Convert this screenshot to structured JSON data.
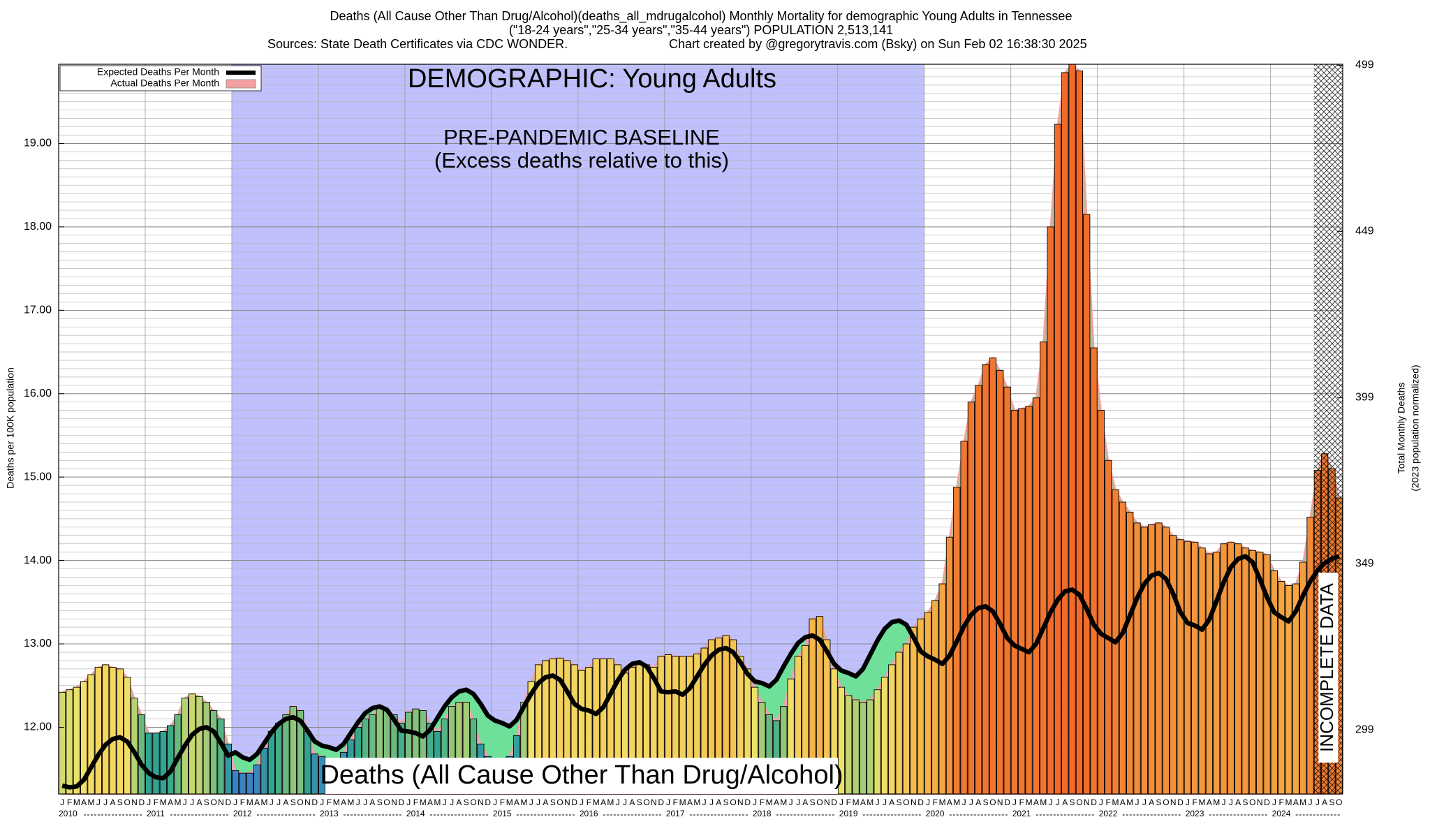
{
  "chart_data": {
    "type": "bar",
    "title": "Deaths (All Cause Other Than Drug/Alcohol)(deaths_all_mdrugalcohol) Monthly Mortality for demographic Young Adults in Tennessee",
    "subtitle": "(\"18-24 years\",\"25-34 years\",\"35-44 years\") POPULATION 2,513,141",
    "sources": "Sources: State Death Certificates via CDC WONDER.",
    "credit": "Chart created by @gregorytravis.com (Bsky) on Sun Feb 02 16:38:30 2025",
    "y_label": "Deaths per 100K population",
    "y2_label": "Total Monthly Deaths",
    "y2_label_sub": "(2023 population normalized)",
    "annotations": {
      "demographic": "DEMOGRAPHIC: Young Adults",
      "baseline": "PRE-PANDEMIC BASELINE",
      "baseline_note": "(Excess deaths relative to this)",
      "measure": "Deaths (All Cause Other Than Drug/Alcohol)",
      "incomplete": "INCOMPLETE DATA"
    },
    "baseline": {
      "from": "2012-01",
      "to": "2019-12"
    },
    "incomplete_from": "2024-07",
    "month_labels": [
      "J",
      "F",
      "M",
      "A",
      "M",
      "J",
      "J",
      "A",
      "S",
      "O",
      "N",
      "D"
    ],
    "years": [
      "2010",
      "2011",
      "2012",
      "2013",
      "2014",
      "2015",
      "2016",
      "2017",
      "2018",
      "2019",
      "2020",
      "2021",
      "2022",
      "2023",
      "2024"
    ],
    "x": [
      "2010-01",
      "2010-02",
      "2010-03",
      "2010-04",
      "2010-05",
      "2010-06",
      "2010-07",
      "2010-08",
      "2010-09",
      "2010-10",
      "2010-11",
      "2010-12",
      "2011-01",
      "2011-02",
      "2011-03",
      "2011-04",
      "2011-05",
      "2011-06",
      "2011-07",
      "2011-08",
      "2011-09",
      "2011-10",
      "2011-11",
      "2011-12",
      "2012-01",
      "2012-02",
      "2012-03",
      "2012-04",
      "2012-05",
      "2012-06",
      "2012-07",
      "2012-08",
      "2012-09",
      "2012-10",
      "2012-11",
      "2012-12",
      "2013-01",
      "2013-02",
      "2013-03",
      "2013-04",
      "2013-05",
      "2013-06",
      "2013-07",
      "2013-08",
      "2013-09",
      "2013-10",
      "2013-11",
      "2013-12",
      "2014-01",
      "2014-02",
      "2014-03",
      "2014-04",
      "2014-05",
      "2014-06",
      "2014-07",
      "2014-08",
      "2014-09",
      "2014-10",
      "2014-11",
      "2014-12",
      "2015-01",
      "2015-02",
      "2015-03",
      "2015-04",
      "2015-05",
      "2015-06",
      "2015-07",
      "2015-08",
      "2015-09",
      "2015-10",
      "2015-11",
      "2015-12",
      "2016-01",
      "2016-02",
      "2016-03",
      "2016-04",
      "2016-05",
      "2016-06",
      "2016-07",
      "2016-08",
      "2016-09",
      "2016-10",
      "2016-11",
      "2016-12",
      "2017-01",
      "2017-02",
      "2017-03",
      "2017-04",
      "2017-05",
      "2017-06",
      "2017-07",
      "2017-08",
      "2017-09",
      "2017-10",
      "2017-11",
      "2017-12",
      "2018-01",
      "2018-02",
      "2018-03",
      "2018-04",
      "2018-05",
      "2018-06",
      "2018-07",
      "2018-08",
      "2018-09",
      "2018-10",
      "2018-11",
      "2018-12",
      "2019-01",
      "2019-02",
      "2019-03",
      "2019-04",
      "2019-05",
      "2019-06",
      "2019-07",
      "2019-08",
      "2019-09",
      "2019-10",
      "2019-11",
      "2019-12",
      "2020-01",
      "2020-02",
      "2020-03",
      "2020-04",
      "2020-05",
      "2020-06",
      "2020-07",
      "2020-08",
      "2020-09",
      "2020-10",
      "2020-11",
      "2020-12",
      "2021-01",
      "2021-02",
      "2021-03",
      "2021-04",
      "2021-05",
      "2021-06",
      "2021-07",
      "2021-08",
      "2021-09",
      "2021-10",
      "2021-11",
      "2021-12",
      "2022-01",
      "2022-02",
      "2022-03",
      "2022-04",
      "2022-05",
      "2022-06",
      "2022-07",
      "2022-08",
      "2022-09",
      "2022-10",
      "2022-11",
      "2022-12",
      "2023-01",
      "2023-02",
      "2023-03",
      "2023-04",
      "2023-05",
      "2023-06",
      "2023-07",
      "2023-08",
      "2023-09",
      "2023-10",
      "2023-11",
      "2023-12",
      "2024-01",
      "2024-02",
      "2024-03",
      "2024-04",
      "2024-05",
      "2024-06",
      "2024-07",
      "2024-08",
      "2024-09",
      "2024-10"
    ],
    "series": [
      {
        "name": "Expected Deaths Per Month",
        "color": "#000000",
        "kind": "line",
        "values": [
          11.3,
          11.28,
          11.29,
          11.37,
          11.52,
          11.67,
          11.79,
          11.86,
          11.88,
          11.83,
          11.7,
          11.55,
          11.45,
          11.4,
          11.39,
          11.47,
          11.63,
          11.78,
          11.91,
          11.98,
          12.0,
          11.95,
          11.81,
          11.66,
          11.7,
          11.64,
          11.61,
          11.68,
          11.81,
          11.94,
          12.04,
          12.1,
          12.12,
          12.08,
          11.96,
          11.83,
          11.78,
          11.76,
          11.73,
          11.8,
          11.93,
          12.06,
          12.17,
          12.23,
          12.25,
          12.21,
          12.09,
          11.96,
          11.95,
          11.93,
          11.89,
          11.97,
          12.11,
          12.25,
          12.36,
          12.43,
          12.45,
          12.4,
          12.28,
          12.14,
          12.08,
          12.05,
          12.01,
          12.09,
          12.25,
          12.4,
          12.53,
          12.6,
          12.62,
          12.57,
          12.43,
          12.28,
          12.22,
          12.2,
          12.16,
          12.24,
          12.4,
          12.56,
          12.69,
          12.76,
          12.78,
          12.73,
          12.59,
          12.43,
          12.42,
          12.43,
          12.39,
          12.47,
          12.61,
          12.75,
          12.86,
          12.93,
          12.95,
          12.9,
          12.78,
          12.64,
          12.55,
          12.53,
          12.49,
          12.57,
          12.73,
          12.88,
          13.01,
          13.08,
          13.1,
          13.05,
          12.91,
          12.76,
          12.68,
          12.65,
          12.61,
          12.7,
          12.87,
          13.04,
          13.18,
          13.26,
          13.28,
          13.23,
          13.08,
          12.91,
          12.85,
          12.81,
          12.76,
          12.86,
          13.03,
          13.21,
          13.35,
          13.43,
          13.45,
          13.39,
          13.24,
          13.07,
          12.98,
          12.94,
          12.9,
          13.0,
          13.19,
          13.38,
          13.53,
          13.63,
          13.65,
          13.59,
          13.42,
          13.23,
          13.12,
          13.07,
          13.02,
          13.13,
          13.34,
          13.55,
          13.72,
          13.82,
          13.85,
          13.78,
          13.6,
          13.38,
          13.25,
          13.22,
          13.17,
          13.29,
          13.51,
          13.74,
          13.92,
          14.02,
          14.05,
          13.98,
          13.78,
          13.56,
          13.38,
          13.32,
          13.27,
          13.39,
          13.58,
          13.75,
          13.88,
          13.97,
          14.02,
          14.05
        ]
      },
      {
        "name": "Actual Deaths Per Month",
        "color": "#f4a0a0",
        "kind": "bar",
        "values": [
          12.42,
          12.45,
          12.48,
          12.55,
          12.63,
          12.72,
          12.75,
          12.72,
          12.7,
          12.6,
          12.35,
          12.15,
          11.93,
          11.93,
          11.95,
          12.02,
          12.15,
          12.35,
          12.4,
          12.37,
          12.3,
          12.2,
          12.1,
          11.8,
          11.48,
          11.45,
          11.45,
          11.55,
          11.75,
          11.95,
          12.05,
          12.15,
          12.25,
          12.2,
          11.95,
          11.68,
          11.65,
          11.6,
          11.58,
          11.7,
          11.85,
          12.0,
          12.1,
          12.15,
          12.25,
          12.2,
          12.15,
          12.05,
          12.18,
          12.22,
          12.2,
          12.05,
          11.95,
          12.1,
          12.25,
          12.3,
          12.3,
          12.1,
          11.8,
          11.65,
          11.55,
          11.55,
          11.65,
          11.9,
          12.3,
          12.55,
          12.75,
          12.8,
          12.82,
          12.83,
          12.8,
          12.75,
          12.68,
          12.72,
          12.82,
          12.82,
          12.82,
          12.75,
          12.65,
          12.72,
          12.75,
          12.75,
          12.72,
          12.85,
          12.87,
          12.85,
          12.85,
          12.85,
          12.88,
          12.95,
          13.05,
          13.07,
          13.1,
          13.05,
          12.85,
          12.7,
          12.48,
          12.3,
          12.15,
          12.08,
          12.25,
          12.58,
          12.85,
          12.98,
          13.3,
          13.33,
          13.05,
          12.7,
          12.48,
          12.38,
          12.33,
          12.3,
          12.33,
          12.45,
          12.6,
          12.75,
          12.9,
          13.0,
          13.2,
          13.3,
          13.38,
          13.52,
          13.72,
          14.28,
          14.88,
          15.43,
          15.9,
          16.1,
          16.35,
          16.43,
          16.28,
          16.08,
          15.8,
          15.82,
          15.85,
          15.95,
          16.62,
          18.0,
          19.23,
          19.85,
          19.95,
          19.87,
          18.15,
          16.55,
          15.8,
          15.2,
          14.85,
          14.7,
          14.58,
          14.45,
          14.4,
          14.43,
          14.45,
          14.4,
          14.3,
          14.25,
          14.23,
          14.22,
          14.15,
          14.08,
          14.1,
          14.2,
          14.22,
          14.2,
          14.15,
          14.12,
          14.1,
          14.07,
          13.88,
          13.75,
          13.7,
          13.72,
          13.98,
          14.52,
          15.08,
          15.28,
          15.1,
          14.75
        ]
      }
    ],
    "colormap": [
      {
        "value": 11.5,
        "color": "#3b82c4"
      },
      {
        "value": 12.0,
        "color": "#2fa88a"
      },
      {
        "value": 12.5,
        "color": "#f2e46a"
      },
      {
        "value": 13.3,
        "color": "#f5b548"
      },
      {
        "value": 15.0,
        "color": "#f07a32"
      },
      {
        "value": 19.0,
        "color": "#f26a2a"
      }
    ],
    "baseline_color": "#c0c0ff",
    "shortfall_color": "#6ee09a",
    "ylim": [
      11.2,
      19.95
    ],
    "yticks": [
      {
        "value": 12,
        "label": "12.00"
      },
      {
        "value": 13,
        "label": "13.00"
      },
      {
        "value": 14,
        "label": "14.00"
      },
      {
        "value": 15,
        "label": "15.00"
      },
      {
        "value": 16,
        "label": "16.00"
      },
      {
        "value": 17,
        "label": "17.00"
      },
      {
        "value": 18,
        "label": "18.00"
      },
      {
        "value": 19,
        "label": "19.00"
      }
    ],
    "y2lim": [
      279.7,
      499.3
    ],
    "y2ticks": [
      299,
      349,
      399,
      449,
      499
    ],
    "grid": true,
    "legend": "upper left"
  }
}
